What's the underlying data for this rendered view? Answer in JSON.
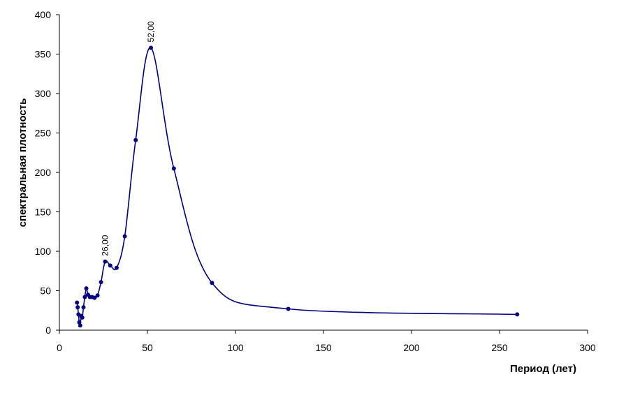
{
  "chart_data": {
    "type": "scatter-line",
    "y_label": "спектральная плотность",
    "x_label": "Период (лет)",
    "x": [
      10,
      10.4,
      10.83,
      11.3,
      11.82,
      12.38,
      13,
      13.68,
      14.44,
      15.29,
      16.25,
      17.33,
      18.57,
      20,
      21.67,
      23.64,
      26,
      28.89,
      32.5,
      37.14,
      43.33,
      52,
      65,
      86.67,
      130,
      260
    ],
    "series": [
      {
        "color": "#000080",
        "values": [
          35,
          29,
          20,
          10,
          6,
          18,
          16,
          29,
          42,
          53,
          45,
          42,
          42,
          41,
          44,
          61,
          87,
          82,
          79,
          119,
          241,
          358,
          205,
          60,
          27,
          20
        ]
      }
    ],
    "annotations": [
      {
        "x": 26,
        "y": 87,
        "label": "26,00"
      },
      {
        "x": 52,
        "y": 358,
        "label": "52,00"
      }
    ],
    "xlim": [
      0,
      300
    ],
    "xticks": [
      0,
      50,
      100,
      150,
      200,
      250,
      300
    ],
    "ylim": [
      0,
      400
    ],
    "yticks": [
      0,
      50,
      100,
      150,
      200,
      250,
      300,
      350,
      400
    ],
    "grid": false,
    "smooth": true
  }
}
